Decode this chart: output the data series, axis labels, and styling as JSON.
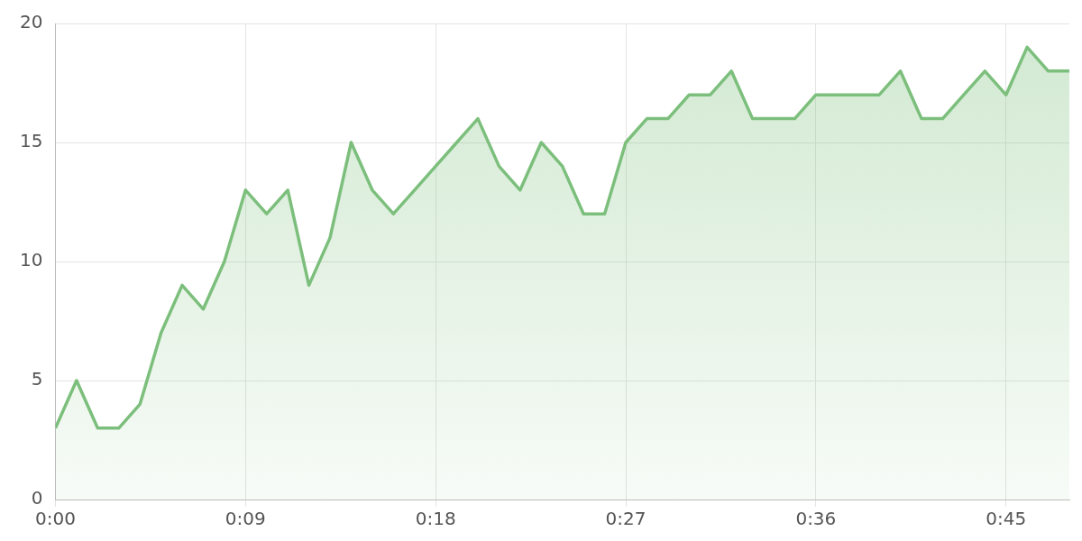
{
  "chart_data": {
    "type": "area",
    "x": [
      0,
      1,
      2,
      3,
      4,
      5,
      6,
      7,
      8,
      9,
      10,
      11,
      12,
      13,
      14,
      15,
      16,
      17,
      18,
      19,
      20,
      21,
      22,
      23,
      24,
      25,
      26,
      27,
      28,
      29,
      30,
      31,
      32,
      33,
      34,
      35,
      36,
      37,
      38,
      39,
      40,
      41,
      42,
      43,
      44,
      45,
      46,
      47,
      48
    ],
    "series": [
      {
        "color": "#7cbf7c",
        "values": [
          3,
          5,
          3,
          3,
          4,
          7,
          9,
          8,
          10,
          13,
          12,
          13,
          9,
          11,
          15,
          13,
          12,
          13,
          14,
          15,
          16,
          14,
          13,
          15,
          14,
          12,
          12,
          15,
          16,
          16,
          17,
          17,
          18,
          16,
          16,
          16,
          17,
          17,
          17,
          17,
          18,
          16,
          16,
          17,
          18,
          17,
          19,
          18,
          18
        ]
      }
    ],
    "xlim": [
      0,
      48
    ],
    "xticks": [
      {
        "value": 0,
        "label": "0:00"
      },
      {
        "value": 9,
        "label": "0:09"
      },
      {
        "value": 18,
        "label": "0:18"
      },
      {
        "value": 27,
        "label": "0:27"
      },
      {
        "value": 36,
        "label": "0:36"
      },
      {
        "value": 45,
        "label": "0:45"
      }
    ],
    "ylim": [
      0,
      20
    ],
    "yticks": [
      0,
      5,
      10,
      15,
      20
    ],
    "grid": true,
    "legend": false,
    "marker": "none",
    "line_style": "solid"
  }
}
